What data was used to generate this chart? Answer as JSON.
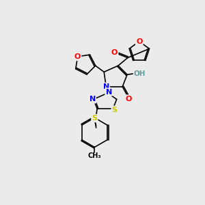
{
  "bg_color": "#ebebeb",
  "colors": {
    "C": "#000000",
    "O": "#ff0000",
    "N": "#0000ff",
    "S": "#cccc00",
    "OH": "#5f9ea0",
    "bond": "#000000"
  },
  "lw": 1.2,
  "fs": 8.0
}
